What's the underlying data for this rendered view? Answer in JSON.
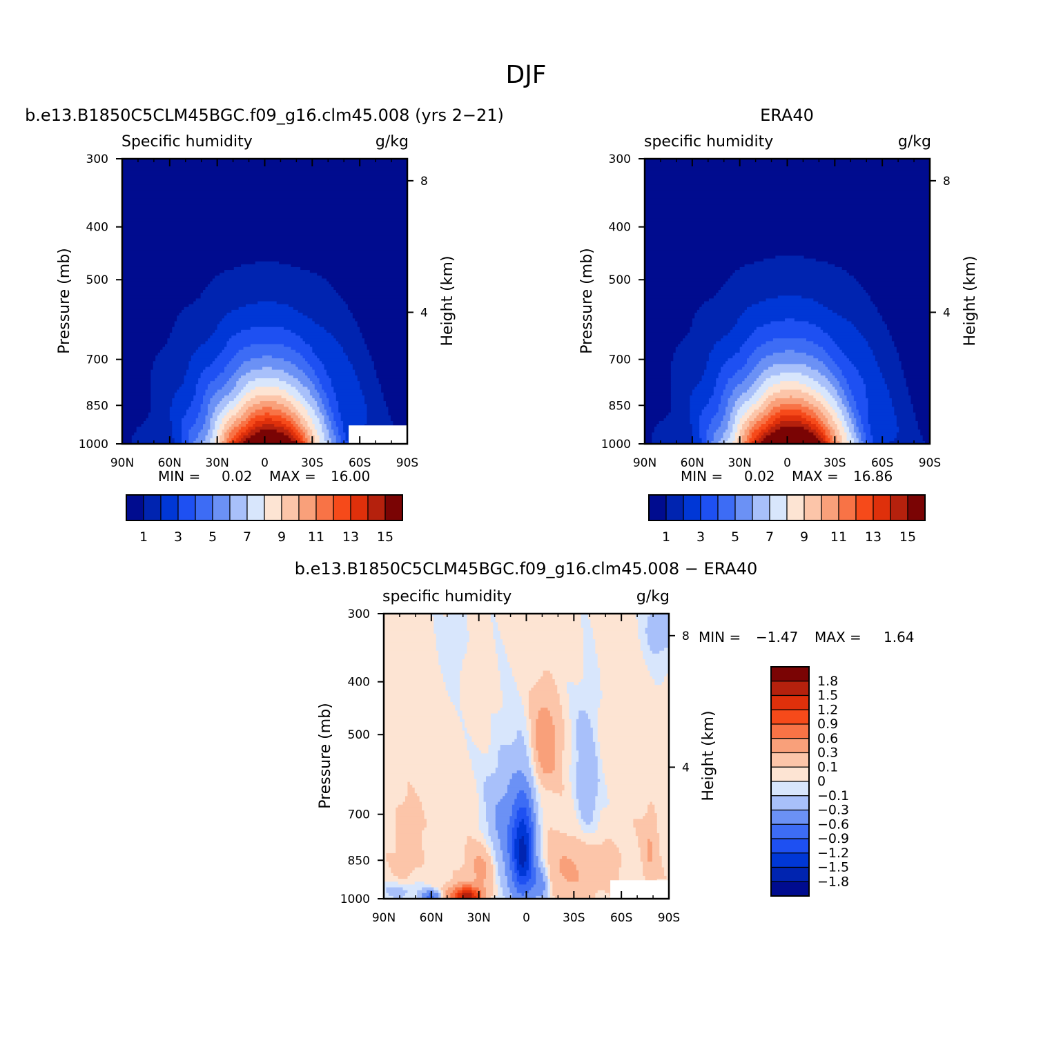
{
  "figure": {
    "title": "DJF"
  },
  "chart_data": [
    {
      "type": "heatmap",
      "panel_title": "b.e13.B1850C5CLM45BGC.f09_g16.clm45.008 (yrs 2−21)",
      "left_string": "Specific humidity",
      "right_string": "g/kg",
      "ylabel": "Pressure (mb)",
      "ylabel_right": "Height (km)",
      "x_ticks": [
        "90N",
        "60N",
        "30N",
        "0",
        "30S",
        "60S",
        "90S"
      ],
      "x_values": [
        90,
        60,
        30,
        0,
        -30,
        -60,
        -90
      ],
      "xlim": [
        90,
        -90
      ],
      "y_ticks": [
        "300",
        "400",
        "500",
        "700",
        "850",
        "1000"
      ],
      "y_values": [
        300,
        400,
        500,
        700,
        850,
        1000
      ],
      "ylim": [
        1000,
        300
      ],
      "y_scale": "log",
      "y_right_ticks": [
        "8",
        "4"
      ],
      "y_right_values": [
        8,
        4
      ],
      "stats": {
        "min_label": "MIN =",
        "min": "0.02",
        "max_label": "MAX =",
        "max": "16.00"
      },
      "contour_levels": [
        1,
        2,
        3,
        4,
        5,
        6,
        7,
        8,
        9,
        10,
        11,
        12,
        13,
        14,
        15
      ],
      "colorbar_labels": [
        "1",
        "3",
        "5",
        "7",
        "9",
        "11",
        "13",
        "15"
      ],
      "colors": [
        "#000c8f",
        "#0024b0",
        "#0037d6",
        "#1e50f2",
        "#3d6cf5",
        "#6b91f5",
        "#a8c0fa",
        "#d8e6fc",
        "#fde4d3",
        "#fcc5a9",
        "#f9a07a",
        "#f87346",
        "#f64a1a",
        "#df300b",
        "#b5210d",
        "#7a0404"
      ],
      "field": {
        "peak_value": 16.0,
        "peak_lat": -2,
        "surface_width_deg": 34,
        "width_growth": 0.55,
        "column_fall_exponent": 2.4,
        "masked_region": {
          "lat_from": -53,
          "lat_to": -90,
          "p_from": 925,
          "p_to": 1000
        }
      }
    },
    {
      "type": "heatmap",
      "panel_title": "ERA40",
      "left_string": "specific humidity",
      "right_string": "g/kg",
      "ylabel": "Pressure (mb)",
      "ylabel_right": "Height (km)",
      "x_ticks": [
        "90N",
        "60N",
        "30N",
        "0",
        "30S",
        "60S",
        "90S"
      ],
      "x_values": [
        90,
        60,
        30,
        0,
        -30,
        -60,
        -90
      ],
      "xlim": [
        90,
        -90
      ],
      "y_ticks": [
        "300",
        "400",
        "500",
        "700",
        "850",
        "1000"
      ],
      "y_values": [
        300,
        400,
        500,
        700,
        850,
        1000
      ],
      "ylim": [
        1000,
        300
      ],
      "y_scale": "log",
      "y_right_ticks": [
        "8",
        "4"
      ],
      "y_right_values": [
        8,
        4
      ],
      "stats": {
        "min_label": "MIN =",
        "min": "0.02",
        "max_label": "MAX =",
        "max": "16.86"
      },
      "contour_levels": [
        1,
        2,
        3,
        4,
        5,
        6,
        7,
        8,
        9,
        10,
        11,
        12,
        13,
        14,
        15
      ],
      "colorbar_labels": [
        "1",
        "3",
        "5",
        "7",
        "9",
        "11",
        "13",
        "15"
      ],
      "colors": [
        "#000c8f",
        "#0024b0",
        "#0037d6",
        "#1e50f2",
        "#3d6cf5",
        "#6b91f5",
        "#a8c0fa",
        "#d8e6fc",
        "#fde4d3",
        "#fcc5a9",
        "#f9a07a",
        "#f87346",
        "#f64a1a",
        "#df300b",
        "#b5210d",
        "#7a0404"
      ],
      "field": {
        "peak_value": 16.86,
        "peak_lat": -2,
        "surface_width_deg": 36,
        "width_growth": 0.5,
        "column_fall_exponent": 2.3
      }
    },
    {
      "type": "heatmap",
      "panel_title": "b.e13.B1850C5CLM45BGC.f09_g16.clm45.008 − ERA40",
      "left_string": "specific humidity",
      "right_string": "g/kg",
      "ylabel": "Pressure (mb)",
      "ylabel_right": "Height (km)",
      "x_ticks": [
        "90N",
        "60N",
        "30N",
        "0",
        "30S",
        "60S",
        "90S"
      ],
      "x_values": [
        90,
        60,
        30,
        0,
        -30,
        -60,
        -90
      ],
      "xlim": [
        90,
        -90
      ],
      "y_ticks": [
        "300",
        "400",
        "500",
        "700",
        "850",
        "1000"
      ],
      "y_values": [
        300,
        400,
        500,
        700,
        850,
        1000
      ],
      "ylim": [
        1000,
        300
      ],
      "y_scale": "log",
      "y_right_ticks": [
        "8",
        "4"
      ],
      "y_right_values": [
        8,
        4
      ],
      "stats": {
        "min_label": "MIN =",
        "min": "−1.47",
        "max_label": "MAX =",
        "max": "1.64"
      },
      "contour_levels": [
        -1.8,
        -1.5,
        -1.2,
        -0.9,
        -0.6,
        -0.3,
        -0.1,
        0,
        0.1,
        0.3,
        0.6,
        0.9,
        1.2,
        1.5,
        1.8
      ],
      "colorbar_labels": [
        "1.8",
        "1.5",
        "1.2",
        "0.9",
        "0.6",
        "0.3",
        "0.1",
        "0",
        "−0.1",
        "−0.3",
        "−0.6",
        "−0.9",
        "−1.2",
        "−1.5",
        "−1.8"
      ],
      "colors": [
        "#000c8f",
        "#0024b0",
        "#0037d6",
        "#1e50f2",
        "#3d6cf5",
        "#6b91f5",
        "#a8c0fa",
        "#d8e6fc",
        "#fde4d3",
        "#fcc5a9",
        "#f9a07a",
        "#f87346",
        "#f64a1a",
        "#df300b",
        "#b5210d",
        "#7a0404"
      ],
      "field": {
        "background": 0.05,
        "features": [
          {
            "lat": 2,
            "p": 820,
            "dlat": 7,
            "dp": 170,
            "amp": -1.45
          },
          {
            "lat": 12,
            "p": 760,
            "dlat": 14,
            "dp": 230,
            "amp": -0.45
          },
          {
            "lat": -9,
            "p": 930,
            "dlat": 6,
            "dp": 80,
            "amp": -0.5
          },
          {
            "lat": 38,
            "p": 990,
            "dlat": 10,
            "dp": 40,
            "amp": 1.55
          },
          {
            "lat": 28,
            "p": 880,
            "dlat": 10,
            "dp": 90,
            "amp": 0.4
          },
          {
            "lat": 60,
            "p": 990,
            "dlat": 6,
            "dp": 25,
            "amp": -0.7
          },
          {
            "lat": 80,
            "p": 970,
            "dlat": 12,
            "dp": 40,
            "amp": -0.25
          },
          {
            "lat": -12,
            "p": 520,
            "dlat": 8,
            "dp": 90,
            "amp": 0.5
          },
          {
            "lat": -38,
            "p": 610,
            "dlat": 8,
            "dp": 220,
            "amp": -0.28
          },
          {
            "lat": -30,
            "p": 880,
            "dlat": 22,
            "dp": 120,
            "amp": 0.3
          },
          {
            "lat": -84,
            "p": 320,
            "dlat": 12,
            "dp": 60,
            "amp": -0.2
          },
          {
            "lat": 45,
            "p": 340,
            "dlat": 8,
            "dp": 60,
            "amp": -0.15
          },
          {
            "lat": 75,
            "p": 800,
            "dlat": 8,
            "dp": 120,
            "amp": 0.2
          },
          {
            "lat": -78,
            "p": 820,
            "dlat": 5,
            "dp": 120,
            "amp": 0.25
          }
        ],
        "masked_region": {
          "lat_from": -53,
          "lat_to": -90,
          "p_from": 925,
          "p_to": 1000
        }
      }
    }
  ]
}
